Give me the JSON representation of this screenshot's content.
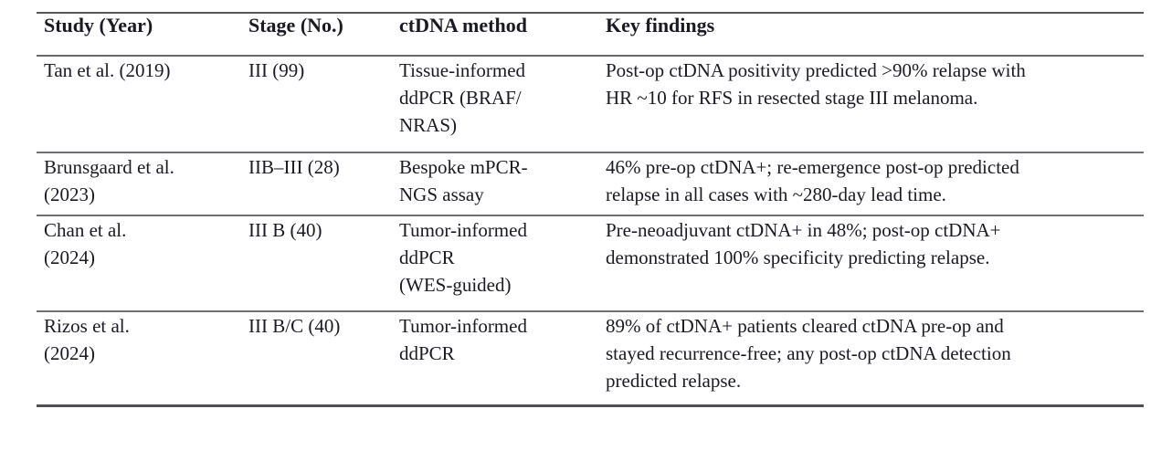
{
  "table": {
    "columns": [
      "Study (Year)",
      "Stage (No.)",
      "ctDNA method",
      "Key findings"
    ],
    "rows": [
      {
        "study": "Tan et al. (2019)",
        "stage": "III (99)",
        "method": "Tissue-informed\nddPCR (BRAF/\nNRAS)",
        "findings": "Post-op ctDNA positivity predicted >90% relapse with\nHR ~10 for RFS in resected stage III melanoma."
      },
      {
        "study": "Brunsgaard et al.\n(2023)",
        "stage": "IIB–III (28)",
        "method": "Bespoke mPCR-\nNGS assay",
        "findings": "46% pre-op ctDNA+; re-emergence post-op predicted\nrelapse in all cases with ~280-day lead time."
      },
      {
        "study": "Chan et al.\n(2024)",
        "stage": "III B (40)",
        "method": "Tumor-informed\nddPCR\n(WES-guided)",
        "findings": "Pre-neoadjuvant ctDNA+ in 48%; post-op ctDNA+\ndemonstrated 100% specificity predicting relapse."
      },
      {
        "study": "Rizos et al.\n(2024)",
        "stage": "III B/C (40)",
        "method": "Tumor-informed\nddPCR",
        "findings": "89% of ctDNA+ patients cleared ctDNA pre-op and\nstayed recurrence-free; any post-op ctDNA detection\npredicted relapse."
      }
    ]
  },
  "colors": {
    "text": "#1a1a23",
    "rule_top": "#55555a",
    "rule_header": "#67676c",
    "rule_row": "#6e6e73",
    "rule_bottom": "#4f4f54"
  }
}
